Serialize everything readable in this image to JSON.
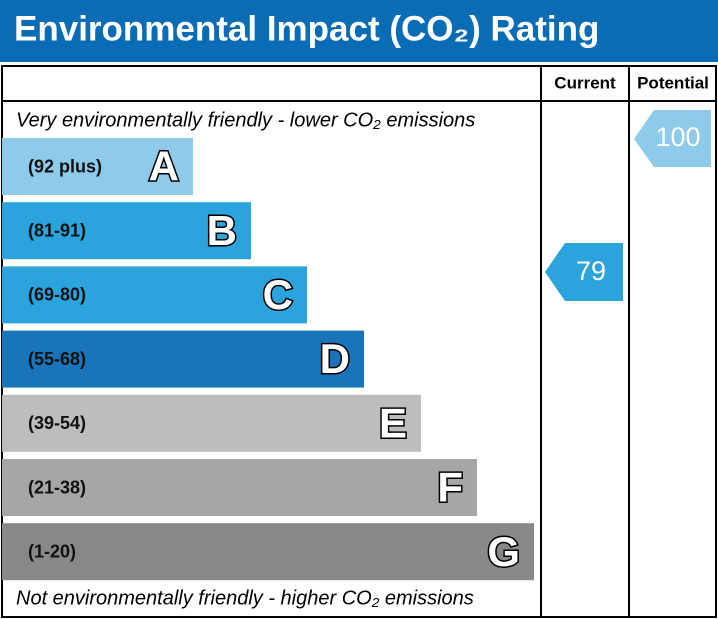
{
  "header": {
    "title": "Environmental Impact (CO₂) Rating"
  },
  "columns": [
    "Current",
    "Potential"
  ],
  "top_note": "Very environmentally friendly - lower CO₂ emissions",
  "bottom_note": "Not environmentally friendly - higher CO₂ emissions",
  "bands": [
    {
      "range": "(92 plus)",
      "letter": "A"
    },
    {
      "range": "(81-91)",
      "letter": "B"
    },
    {
      "range": "(69-80)",
      "letter": "C"
    },
    {
      "range": "(55-68)",
      "letter": "D"
    },
    {
      "range": "(39-54)",
      "letter": "E"
    },
    {
      "range": "(21-38)",
      "letter": "F"
    },
    {
      "range": "(1-20)",
      "letter": "G"
    }
  ],
  "current": {
    "value": 79
  },
  "potential": {
    "value": 100
  }
}
